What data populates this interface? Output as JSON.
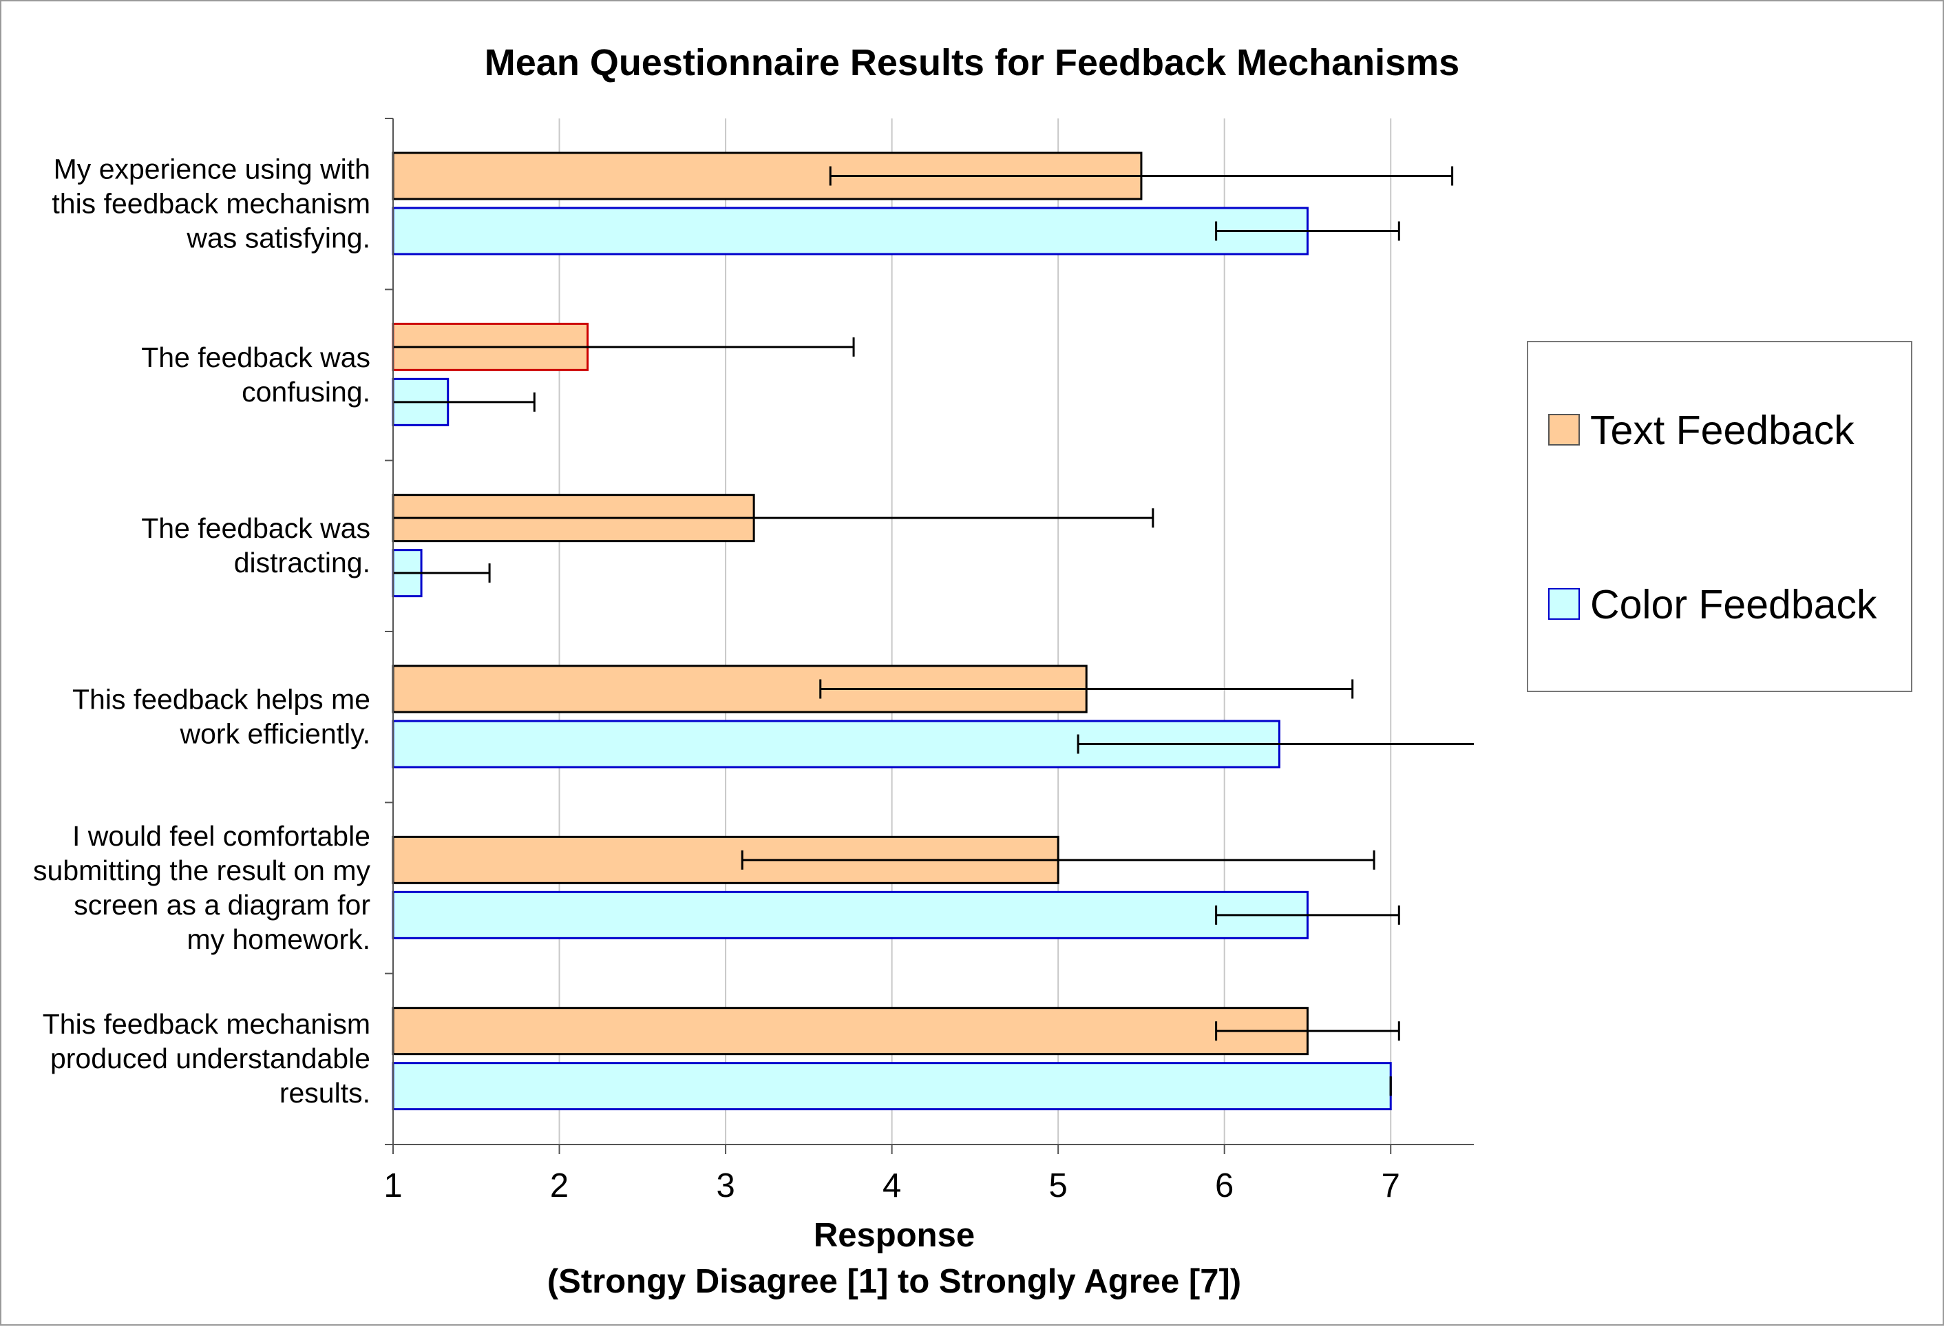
{
  "chart_data": {
    "type": "bar",
    "orientation": "horizontal",
    "title": "Mean Questionnaire Results for Feedback Mechanisms",
    "xlabel_line1": "Response",
    "xlabel_line2": "(Strongy Disagree [1] to Strongly Agree [7])",
    "xlim": [
      1,
      7.5
    ],
    "xticks": [
      "1",
      "2",
      "3",
      "4",
      "5",
      "6",
      "7"
    ],
    "grid": "vertical",
    "legend_position": "right",
    "categories": [
      [
        "My experience using with",
        "this feedback mechanism",
        "was satisfying."
      ],
      [
        "The feedback was",
        "confusing."
      ],
      [
        "The feedback was",
        "distracting."
      ],
      [
        "This feedback helps me",
        "work efficiently."
      ],
      [
        "I would feel comfortable",
        "submitting the result on my",
        "screen as a diagram for",
        "my homework."
      ],
      [
        "This feedback mechanism",
        "produced understandable",
        "results."
      ]
    ],
    "series": [
      {
        "name": "Text Feedback",
        "fill": "#ffcc99",
        "stroke": "#000000",
        "values": [
          5.5,
          2.17,
          3.17,
          5.17,
          5.0,
          6.5
        ],
        "error": [
          1.87,
          1.6,
          2.4,
          1.6,
          1.9,
          0.55
        ],
        "bar_strokes": [
          "#000000",
          "#cc0000",
          "#000000",
          "#000000",
          "#000000",
          "#000000"
        ]
      },
      {
        "name": "Color Feedback",
        "fill": "#ccffff",
        "stroke": "#0000cc",
        "values": [
          6.5,
          1.33,
          1.17,
          6.33,
          6.5,
          7.0
        ],
        "error": [
          0.55,
          0.52,
          0.41,
          1.21,
          0.55,
          0.0
        ]
      }
    ]
  }
}
